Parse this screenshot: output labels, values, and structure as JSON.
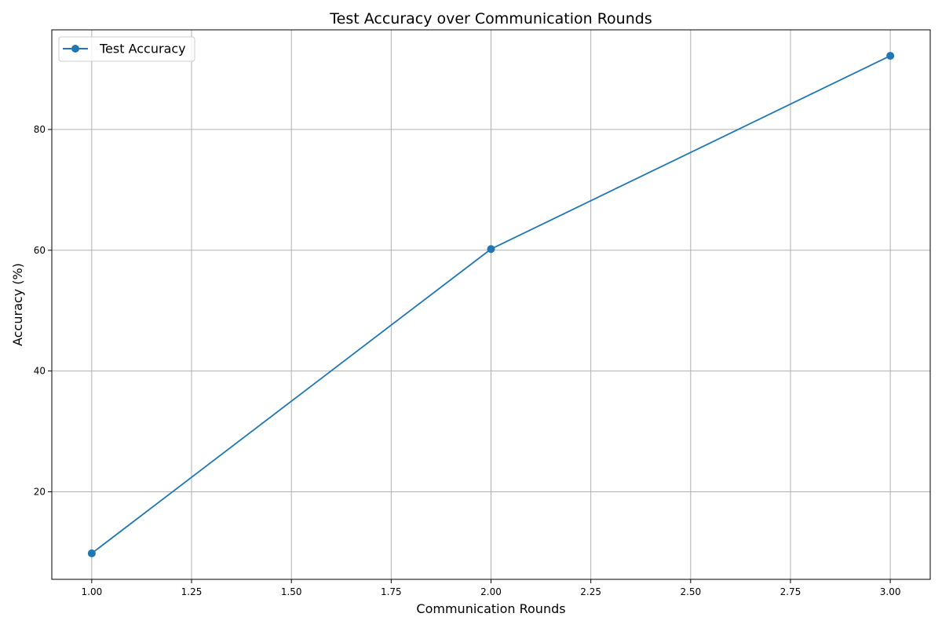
{
  "chart_data": {
    "type": "line",
    "title": "Test Accuracy over Communication Rounds",
    "xlabel": "Communication Rounds",
    "ylabel": "Accuracy (%)",
    "xlim": [
      0.9,
      3.1
    ],
    "ylim": [
      5.5,
      96.5
    ],
    "xticks": [
      1.0,
      1.25,
      1.5,
      1.75,
      2.0,
      2.25,
      2.5,
      2.75,
      3.0
    ],
    "xtick_labels": [
      "1.00",
      "1.25",
      "1.50",
      "1.75",
      "2.00",
      "2.25",
      "2.50",
      "2.75",
      "3.00"
    ],
    "yticks": [
      20,
      40,
      60,
      80
    ],
    "ytick_labels": [
      "20",
      "40",
      "60",
      "80"
    ],
    "grid": true,
    "legend_position": "top-left",
    "series": [
      {
        "name": "Test Accuracy",
        "color": "#1f77b4",
        "marker": "circle",
        "x": [
          1,
          2,
          3
        ],
        "y": [
          9.8,
          60.2,
          92.2
        ]
      }
    ]
  }
}
